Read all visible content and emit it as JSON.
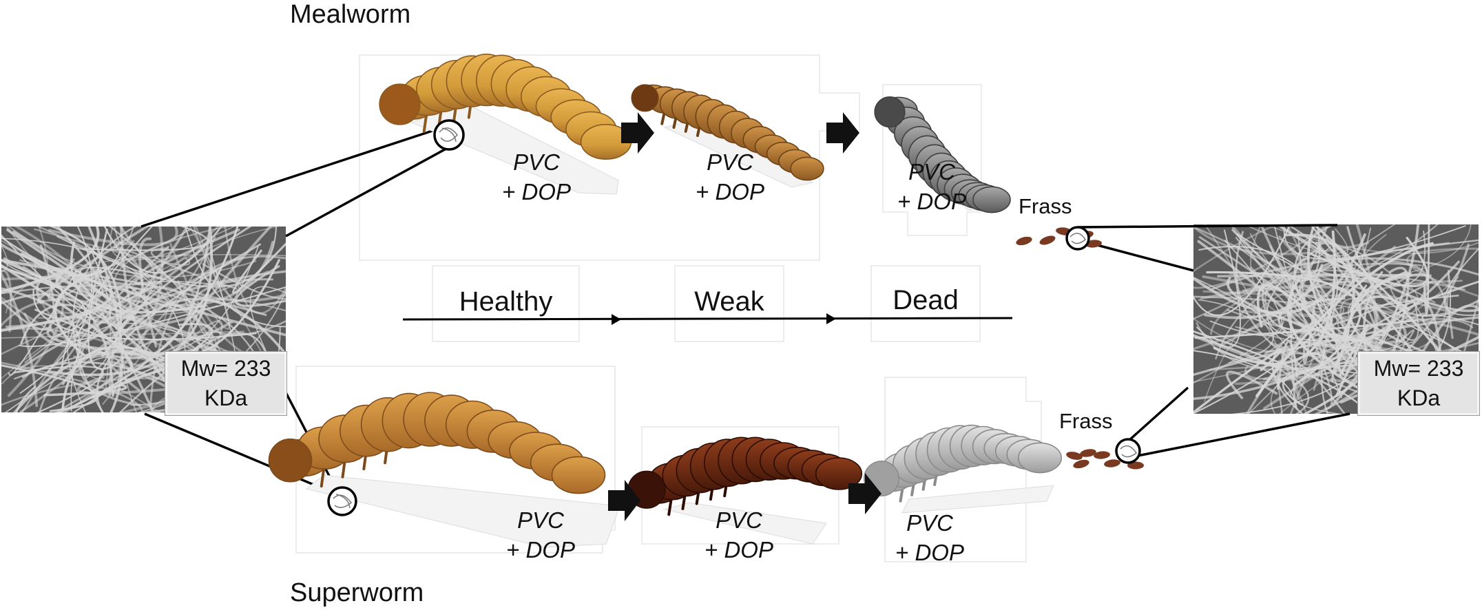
{
  "rows": {
    "top_label": "Mealworm",
    "bottom_label": "Superworm"
  },
  "stages": [
    "Healthy",
    "Weak",
    "Dead"
  ],
  "larva_labels": {
    "line1": "PVC",
    "line2": "+ DOP"
  },
  "frass_label": "Frass",
  "mw_label": {
    "line1": "Mw= 233",
    "line2": "KDa"
  },
  "colors": {
    "mealworm_healthy": "#d39b3a",
    "mealworm_weak": "#b87d36",
    "mealworm_dead": "#7f7f7f",
    "superworm_healthy": "#cc8e3c",
    "superworm_weak": "#6e2d14",
    "superworm_dead": "#bcbcbc",
    "frass": "#7a3a22",
    "fiber_bg": "#5c5c5c",
    "fiber": "#d7d7d7"
  }
}
